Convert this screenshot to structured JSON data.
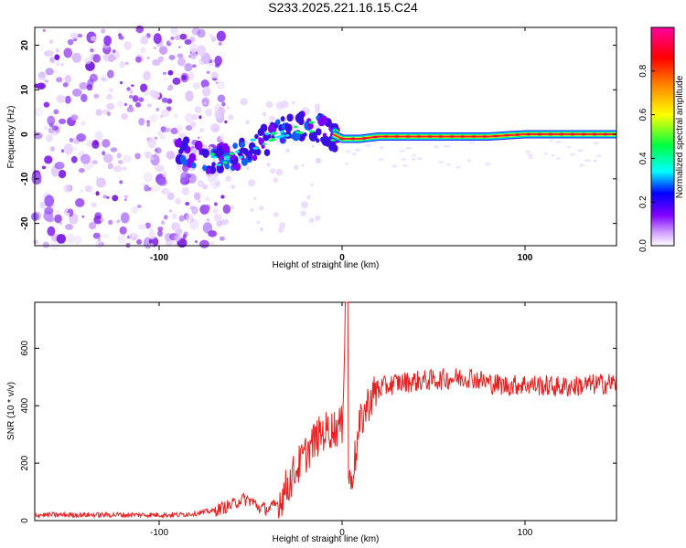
{
  "chart_data": [
    {
      "type": "heatmap",
      "title": "S233.2025.221.16.15.C24",
      "xlabel": "Height of straight line (km)",
      "ylabel": "Frequency (Hz)",
      "xlim": [
        -168,
        150
      ],
      "ylim": [
        -25,
        24
      ],
      "xticks": [
        -100,
        0,
        100
      ],
      "xtick_labels": [
        "-100",
        "0",
        "100"
      ],
      "yticks": [
        20,
        10,
        0,
        -10,
        -20
      ],
      "ytick_labels": [
        "20",
        "10",
        "0",
        "-10",
        "-20"
      ],
      "ridge_x": [
        -90,
        -80,
        -70,
        -60,
        -50,
        -40,
        -30,
        -20,
        -10,
        0,
        10,
        20,
        40,
        60,
        80,
        100,
        120,
        150
      ],
      "ridge_y": [
        -3,
        -5,
        -6,
        -5,
        -3,
        -1,
        1,
        2,
        1,
        -1,
        -1,
        -0.5,
        -0.5,
        -0.5,
        -0.5,
        0,
        0,
        0
      ],
      "colorbar": {
        "label": "Normalized spectral amplitude",
        "range": [
          0,
          1
        ],
        "ticks": [
          0,
          0.2,
          0.4,
          0.6,
          0.8
        ],
        "tick_labels": [
          "0.0",
          "0.2",
          "0.4",
          "0.6",
          "0.8"
        ],
        "colors": [
          "#ffffff",
          "#a000ff",
          "#0000ff",
          "#00ffff",
          "#00ff00",
          "#ffff00",
          "#ff7f00",
          "#ff0000",
          "#ff00a0"
        ]
      }
    },
    {
      "type": "line",
      "title": "",
      "xlabel": "Height of straight line (km)",
      "ylabel": "SNR (10 * v/v)",
      "xlim": [
        -168,
        150
      ],
      "ylim": [
        0,
        760
      ],
      "xticks": [
        -100,
        0,
        100
      ],
      "xtick_labels": [
        "-100",
        "0",
        "100"
      ],
      "yticks": [
        0,
        200,
        400,
        600
      ],
      "ytick_labels": [
        "0",
        "200",
        "400",
        "600"
      ],
      "color": "#e82020",
      "series": [
        {
          "name": "SNR",
          "x": [
            -168,
            -150,
            -130,
            -110,
            -90,
            -80,
            -70,
            -60,
            -55,
            -50,
            -45,
            -40,
            -35,
            -30,
            -25,
            -20,
            -15,
            -10,
            -5,
            0,
            2,
            3,
            4,
            5,
            8,
            10,
            15,
            20,
            25,
            30,
            40,
            50,
            60,
            70,
            80,
            90,
            100,
            110,
            120,
            130,
            140,
            150
          ],
          "y": [
            20,
            20,
            20,
            20,
            20,
            25,
            35,
            55,
            75,
            70,
            45,
            40,
            60,
            120,
            180,
            230,
            280,
            310,
            320,
            330,
            760,
            250,
            120,
            150,
            250,
            340,
            420,
            460,
            470,
            480,
            485,
            490,
            495,
            500,
            480,
            470,
            475,
            470,
            465,
            470,
            475,
            480
          ]
        }
      ]
    }
  ]
}
